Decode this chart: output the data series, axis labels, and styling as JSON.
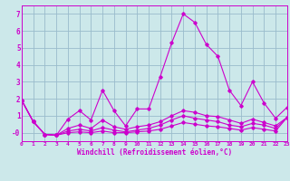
{
  "xlabel": "Windchill (Refroidissement éolien,°C)",
  "bg_color": "#cce8ea",
  "line_color": "#cc00cc",
  "grid_color": "#99bbcc",
  "x_values": [
    0,
    1,
    2,
    3,
    4,
    5,
    6,
    7,
    8,
    9,
    10,
    11,
    12,
    13,
    14,
    15,
    16,
    17,
    18,
    19,
    20,
    21,
    22,
    23
  ],
  "series": [
    [
      1.9,
      0.65,
      -0.1,
      -0.15,
      0.8,
      1.3,
      0.75,
      2.5,
      1.3,
      0.4,
      1.4,
      1.4,
      3.3,
      5.3,
      7.0,
      6.5,
      5.2,
      4.5,
      2.5,
      1.6,
      3.0,
      1.75,
      0.85,
      1.5
    ],
    [
      1.9,
      0.65,
      -0.1,
      -0.15,
      0.25,
      0.45,
      0.25,
      0.75,
      0.35,
      0.2,
      0.35,
      0.45,
      0.65,
      1.0,
      1.3,
      1.2,
      1.0,
      0.95,
      0.75,
      0.55,
      0.8,
      0.6,
      0.4,
      0.9
    ],
    [
      1.9,
      0.65,
      -0.1,
      -0.15,
      0.1,
      0.2,
      0.1,
      0.3,
      0.15,
      0.05,
      0.15,
      0.25,
      0.45,
      0.75,
      1.0,
      0.85,
      0.75,
      0.65,
      0.45,
      0.35,
      0.55,
      0.45,
      0.25,
      0.9
    ],
    [
      1.9,
      0.65,
      -0.1,
      -0.15,
      0.0,
      0.05,
      0.0,
      0.1,
      0.0,
      0.0,
      0.05,
      0.1,
      0.2,
      0.4,
      0.6,
      0.5,
      0.4,
      0.35,
      0.25,
      0.15,
      0.3,
      0.2,
      0.1,
      0.9
    ]
  ],
  "xlim": [
    0,
    23
  ],
  "ylim": [
    -0.5,
    7.5
  ],
  "yticks": [
    0,
    1,
    2,
    3,
    4,
    5,
    6,
    7
  ],
  "ytick_labels": [
    "-0",
    "1",
    "2",
    "3",
    "4",
    "5",
    "6",
    "7"
  ],
  "xticks": [
    0,
    1,
    2,
    3,
    4,
    5,
    6,
    7,
    8,
    9,
    10,
    11,
    12,
    13,
    14,
    15,
    16,
    17,
    18,
    19,
    20,
    21,
    22,
    23
  ]
}
